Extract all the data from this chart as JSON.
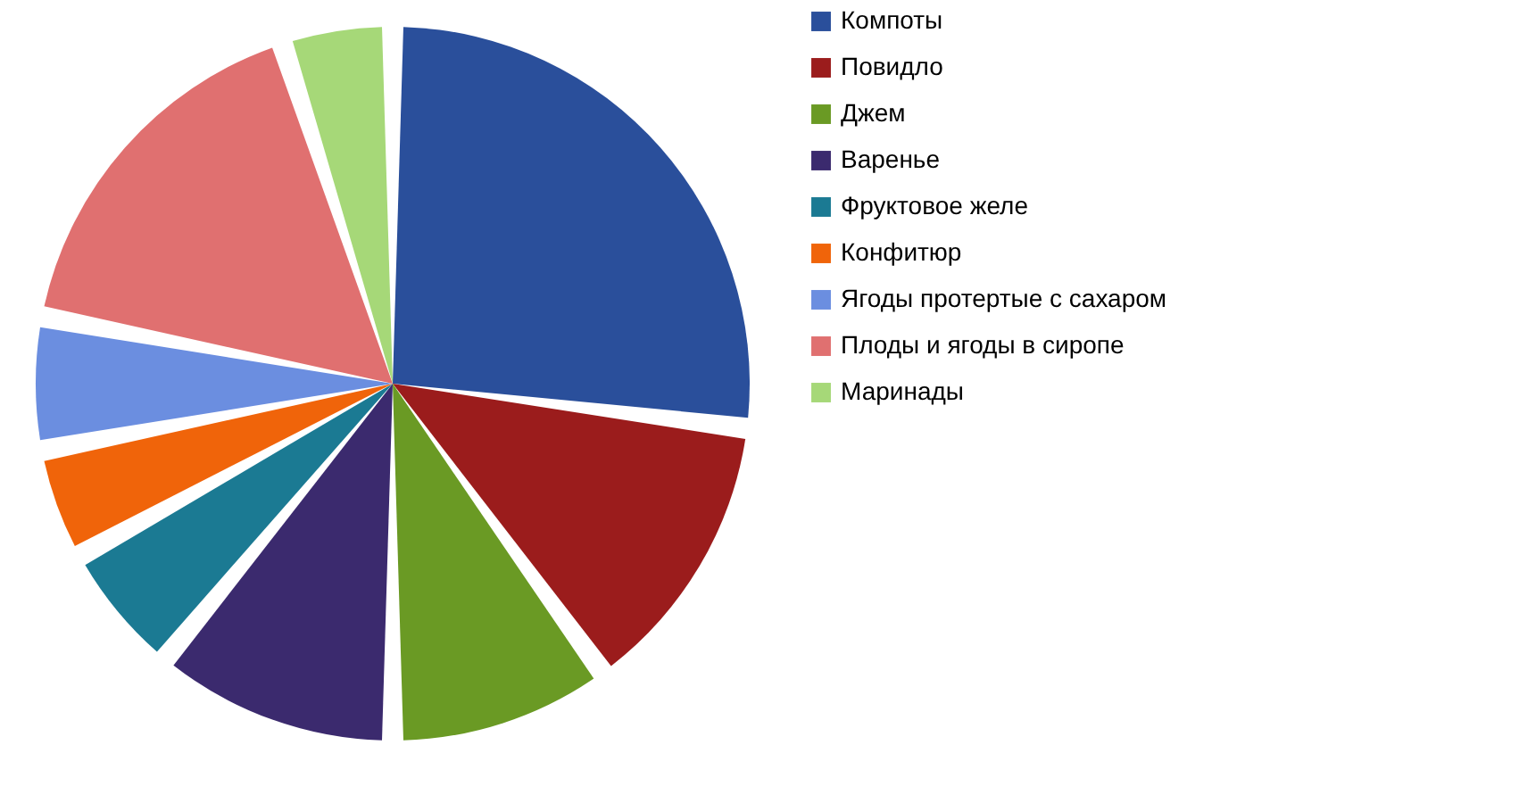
{
  "chart_data": {
    "type": "pie",
    "categories": [
      "Компоты",
      "Повидло",
      "Джем",
      "Варенье",
      "Фруктовое желе",
      "Конфитюр",
      "Ягоды протертые с сахаром",
      "Плоды и ягоды в сиропе",
      "Маринады"
    ],
    "values": [
      27,
      13,
      10,
      11,
      6,
      5,
      6,
      17,
      5
    ],
    "colors": [
      "#2a4f9b",
      "#9b1c1c",
      "#6a9a24",
      "#3b2a6e",
      "#1b7a93",
      "#f0640a",
      "#6b8ee0",
      "#e07070",
      "#a6d878"
    ],
    "legend": "right"
  }
}
